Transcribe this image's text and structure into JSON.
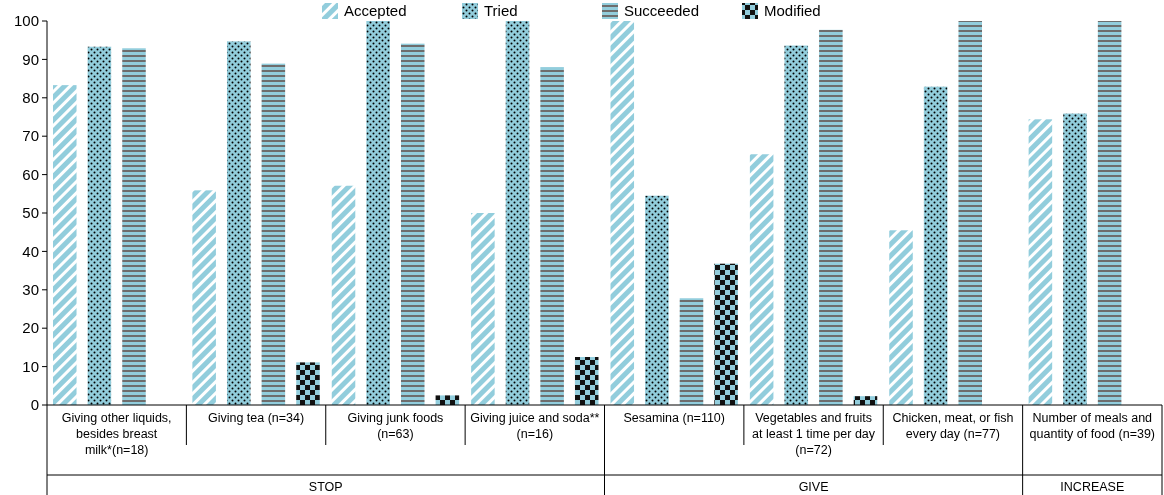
{
  "chart_data": {
    "type": "bar",
    "categories": [
      "Giving other liquids, besides breast milk*(n=18)",
      "Giving tea (n=34)",
      "Giving junk foods (n=63)",
      "Giving juice and soda** (n=16)",
      "Sesamina (n=110)",
      "Vegetables and fruits at least 1 time per day (n=72)",
      "Chicken, meat, or fish every day (n=77)",
      "Number of meals and quantity of food (n=39)"
    ],
    "series": [
      {
        "name": "Accepted",
        "color": "#92cddc",
        "values": [
          83.3,
          55.9,
          57.1,
          50,
          100,
          65.3,
          45.5,
          74.4
        ]
      },
      {
        "name": "Tried",
        "color": "#92cddc",
        "values": [
          93.3,
          94.7,
          100,
          100,
          54.5,
          93.6,
          82.9,
          75.9
        ]
      },
      {
        "name": "Succeeded",
        "color": "#92cddc",
        "values": [
          92.9,
          88.9,
          94.1,
          88,
          27.8,
          97.7,
          100,
          100
        ]
      },
      {
        "name": "Modified",
        "color": "#92cddc",
        "values": [
          null,
          11.1,
          2.5,
          12.5,
          36.8,
          2.3,
          null,
          null
        ]
      }
    ],
    "ylim": [
      0,
      100
    ],
    "yticks": [
      0,
      10,
      20,
      30,
      40,
      50,
      60,
      70,
      80,
      90,
      100
    ],
    "grid": false,
    "legend": "top",
    "annotations": [
      "STOP",
      "GIVE",
      "INCREASE"
    ]
  }
}
